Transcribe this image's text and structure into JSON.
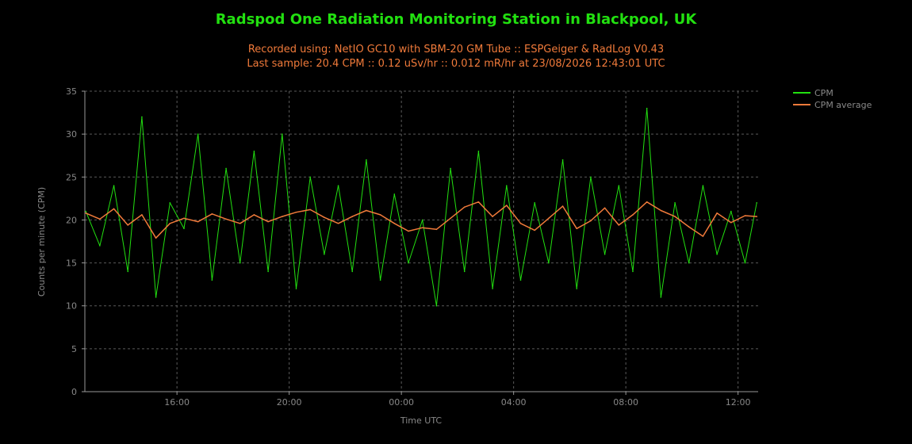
{
  "header": {
    "title": "Radspod One Radiation Monitoring Station in Blackpool, UK",
    "subtitle1": "Recorded using: NetIO GC10 with SBM-20 GM Tube :: ESPGeiger & RadLog V0.43",
    "subtitle2": "Last sample: 20.4 CPM :: 0.12 uSv/hr :: 0.012 mR/hr at 23/08/2026 12:43:01 UTC"
  },
  "colors": {
    "background": "#000000",
    "title": "#22e010",
    "subtitle": "#f07a3a",
    "cpm": "#22e010",
    "average": "#f07a3a",
    "axis_text": "#888888",
    "grid": "#5a5a5a",
    "axis": "#999999"
  },
  "chart_data": {
    "type": "line",
    "title": "Radspod One Radiation Monitoring Station in Blackpool, UK",
    "xlabel": "Time UTC",
    "ylabel": "Counts per minute (CPM)",
    "ylim": [
      0,
      35
    ],
    "xlim": [
      "12:43",
      "12:43"
    ],
    "x_ticks": [
      "16:00",
      "20:00",
      "00:00",
      "04:00",
      "08:00",
      "12:00"
    ],
    "y_ticks": [
      0,
      5,
      10,
      15,
      20,
      25,
      30,
      35
    ],
    "grid": true,
    "legend_position": "right",
    "series": [
      {
        "name": "CPM",
        "color": "#22e010",
        "x": [
          "12:45",
          "13:15",
          "13:45",
          "14:15",
          "14:45",
          "15:15",
          "15:45",
          "16:15",
          "16:45",
          "17:15",
          "17:45",
          "18:15",
          "18:45",
          "19:15",
          "19:45",
          "20:15",
          "20:45",
          "21:15",
          "21:45",
          "22:15",
          "22:45",
          "23:15",
          "23:45",
          "00:15",
          "00:45",
          "01:15",
          "01:45",
          "02:15",
          "02:45",
          "03:15",
          "03:45",
          "04:15",
          "04:45",
          "05:15",
          "05:45",
          "06:15",
          "06:45",
          "07:15",
          "07:45",
          "08:15",
          "08:45",
          "09:15",
          "09:45",
          "10:15",
          "10:45",
          "11:15",
          "11:45",
          "12:15",
          "12:40"
        ],
        "values": [
          21,
          17,
          24,
          14,
          32,
          11,
          22,
          19,
          30,
          13,
          26,
          15,
          28,
          14,
          30,
          12,
          25,
          16,
          24,
          14,
          27,
          13,
          23,
          15,
          20,
          10,
          26,
          14,
          28,
          12,
          24,
          13,
          22,
          15,
          27,
          12,
          25,
          16,
          24,
          14,
          33,
          11,
          22,
          15,
          24,
          16,
          21,
          15,
          22
        ]
      },
      {
        "name": "CPM average",
        "color": "#f07a3a",
        "x": [
          "12:45",
          "13:15",
          "13:45",
          "14:15",
          "14:45",
          "15:15",
          "15:45",
          "16:15",
          "16:45",
          "17:15",
          "17:45",
          "18:15",
          "18:45",
          "19:15",
          "19:45",
          "20:15",
          "20:45",
          "21:15",
          "21:45",
          "22:15",
          "22:45",
          "23:15",
          "23:45",
          "00:15",
          "00:45",
          "01:15",
          "01:45",
          "02:15",
          "02:45",
          "03:15",
          "03:45",
          "04:15",
          "04:45",
          "05:15",
          "05:45",
          "06:15",
          "06:45",
          "07:15",
          "07:45",
          "08:15",
          "08:45",
          "09:15",
          "09:45",
          "10:15",
          "10:45",
          "11:15",
          "11:45",
          "12:15",
          "12:40"
        ],
        "values": [
          20.8,
          20.1,
          21.3,
          19.4,
          20.6,
          17.9,
          19.6,
          20.2,
          19.8,
          20.7,
          20.1,
          19.6,
          20.6,
          19.8,
          20.4,
          20.9,
          21.2,
          20.3,
          19.6,
          20.4,
          21.1,
          20.6,
          19.6,
          18.7,
          19.1,
          18.9,
          20.2,
          21.5,
          22.1,
          20.4,
          21.7,
          19.6,
          18.8,
          20.2,
          21.6,
          19.0,
          19.9,
          21.4,
          19.4,
          20.6,
          22.1,
          21.1,
          20.4,
          19.2,
          18.1,
          20.8,
          19.7,
          20.5,
          20.4
        ]
      }
    ]
  }
}
